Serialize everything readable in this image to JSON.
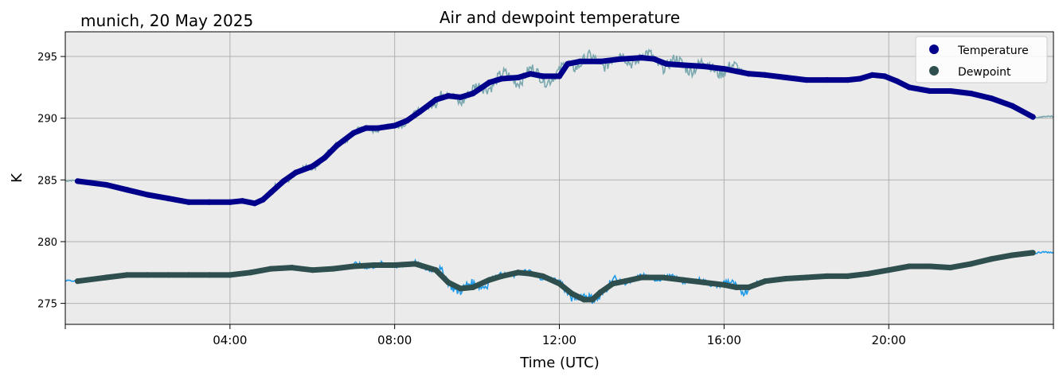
{
  "chart_data": {
    "type": "line",
    "title": "Air and dewpoint temperature",
    "subtitle": "munich, 20 May 2025",
    "xlabel": "Time (UTC)",
    "ylabel": "K",
    "xlim": [
      0,
      24
    ],
    "ylim": [
      273.3,
      297.0
    ],
    "grid": true,
    "legend_position": "top-right",
    "plot_background": "#ebebeb",
    "x_ticks": [
      {
        "value": 4,
        "label": "04:00"
      },
      {
        "value": 8,
        "label": "08:00"
      },
      {
        "value": 12,
        "label": "12:00"
      },
      {
        "value": 16,
        "label": "16:00"
      },
      {
        "value": 20,
        "label": "20:00"
      }
    ],
    "y_ticks": [
      {
        "value": 275,
        "label": "275"
      },
      {
        "value": 280,
        "label": "280"
      },
      {
        "value": 285,
        "label": "285"
      },
      {
        "value": 290,
        "label": "290"
      },
      {
        "value": 295,
        "label": "295"
      }
    ],
    "series": [
      {
        "name": "Temperature",
        "color": "#00008b",
        "raw_color": "#7aa8ae",
        "x": [
          0.3,
          1.0,
          1.5,
          2.0,
          2.5,
          3.0,
          3.5,
          4.0,
          4.3,
          4.6,
          4.8,
          5.0,
          5.3,
          5.6,
          6.0,
          6.3,
          6.6,
          7.0,
          7.3,
          7.6,
          8.0,
          8.3,
          8.6,
          9.0,
          9.3,
          9.6,
          9.9,
          10.3,
          10.6,
          11.0,
          11.3,
          11.6,
          12.0,
          12.2,
          12.5,
          13.0,
          13.5,
          14.0,
          14.3,
          14.6,
          15.0,
          15.5,
          16.0,
          16.3,
          16.6,
          17.0,
          17.5,
          18.0,
          18.5,
          19.0,
          19.3,
          19.6,
          19.9,
          20.2,
          20.5,
          21.0,
          21.5,
          22.0,
          22.5,
          23.0,
          23.5
        ],
        "y": [
          284.9,
          284.6,
          284.2,
          283.8,
          283.5,
          283.2,
          283.2,
          283.2,
          283.3,
          283.1,
          283.4,
          284.0,
          284.9,
          285.6,
          286.1,
          286.8,
          287.8,
          288.8,
          289.2,
          289.2,
          289.4,
          289.8,
          290.5,
          291.5,
          291.8,
          291.7,
          292.0,
          292.9,
          293.2,
          293.3,
          293.6,
          293.4,
          293.4,
          294.4,
          294.6,
          294.6,
          294.8,
          294.9,
          294.8,
          294.4,
          294.3,
          294.2,
          294.0,
          293.8,
          293.6,
          293.5,
          293.3,
          293.1,
          293.1,
          293.1,
          293.2,
          293.5,
          293.4,
          293.0,
          292.5,
          292.2,
          292.2,
          292.0,
          291.6,
          291.0,
          290.1
        ]
      },
      {
        "name": "Dewpoint",
        "color": "#2f4f4f",
        "raw_color": "#1e9ae8",
        "x": [
          0.3,
          1.0,
          1.5,
          2.0,
          2.5,
          3.0,
          3.5,
          4.0,
          4.5,
          5.0,
          5.5,
          6.0,
          6.5,
          7.0,
          7.5,
          8.0,
          8.5,
          9.0,
          9.3,
          9.6,
          9.9,
          10.3,
          10.6,
          11.0,
          11.3,
          11.6,
          12.0,
          12.3,
          12.6,
          12.8,
          13.0,
          13.3,
          13.6,
          14.0,
          14.5,
          15.0,
          15.5,
          16.0,
          16.3,
          16.6,
          17.0,
          17.5,
          18.0,
          18.5,
          19.0,
          19.5,
          20.0,
          20.5,
          21.0,
          21.5,
          22.0,
          22.5,
          23.0,
          23.5
        ],
        "y": [
          276.8,
          277.1,
          277.3,
          277.3,
          277.3,
          277.3,
          277.3,
          277.3,
          277.5,
          277.8,
          277.9,
          277.7,
          277.8,
          278.0,
          278.1,
          278.1,
          278.2,
          277.7,
          276.7,
          276.2,
          276.3,
          276.9,
          277.2,
          277.5,
          277.4,
          277.2,
          276.6,
          275.8,
          275.3,
          275.3,
          275.9,
          276.6,
          276.8,
          277.1,
          277.1,
          276.9,
          276.7,
          276.5,
          276.3,
          276.3,
          276.8,
          277.0,
          277.1,
          277.2,
          277.2,
          277.4,
          277.7,
          278.0,
          278.0,
          277.9,
          278.2,
          278.6,
          278.9,
          279.1
        ]
      }
    ]
  }
}
